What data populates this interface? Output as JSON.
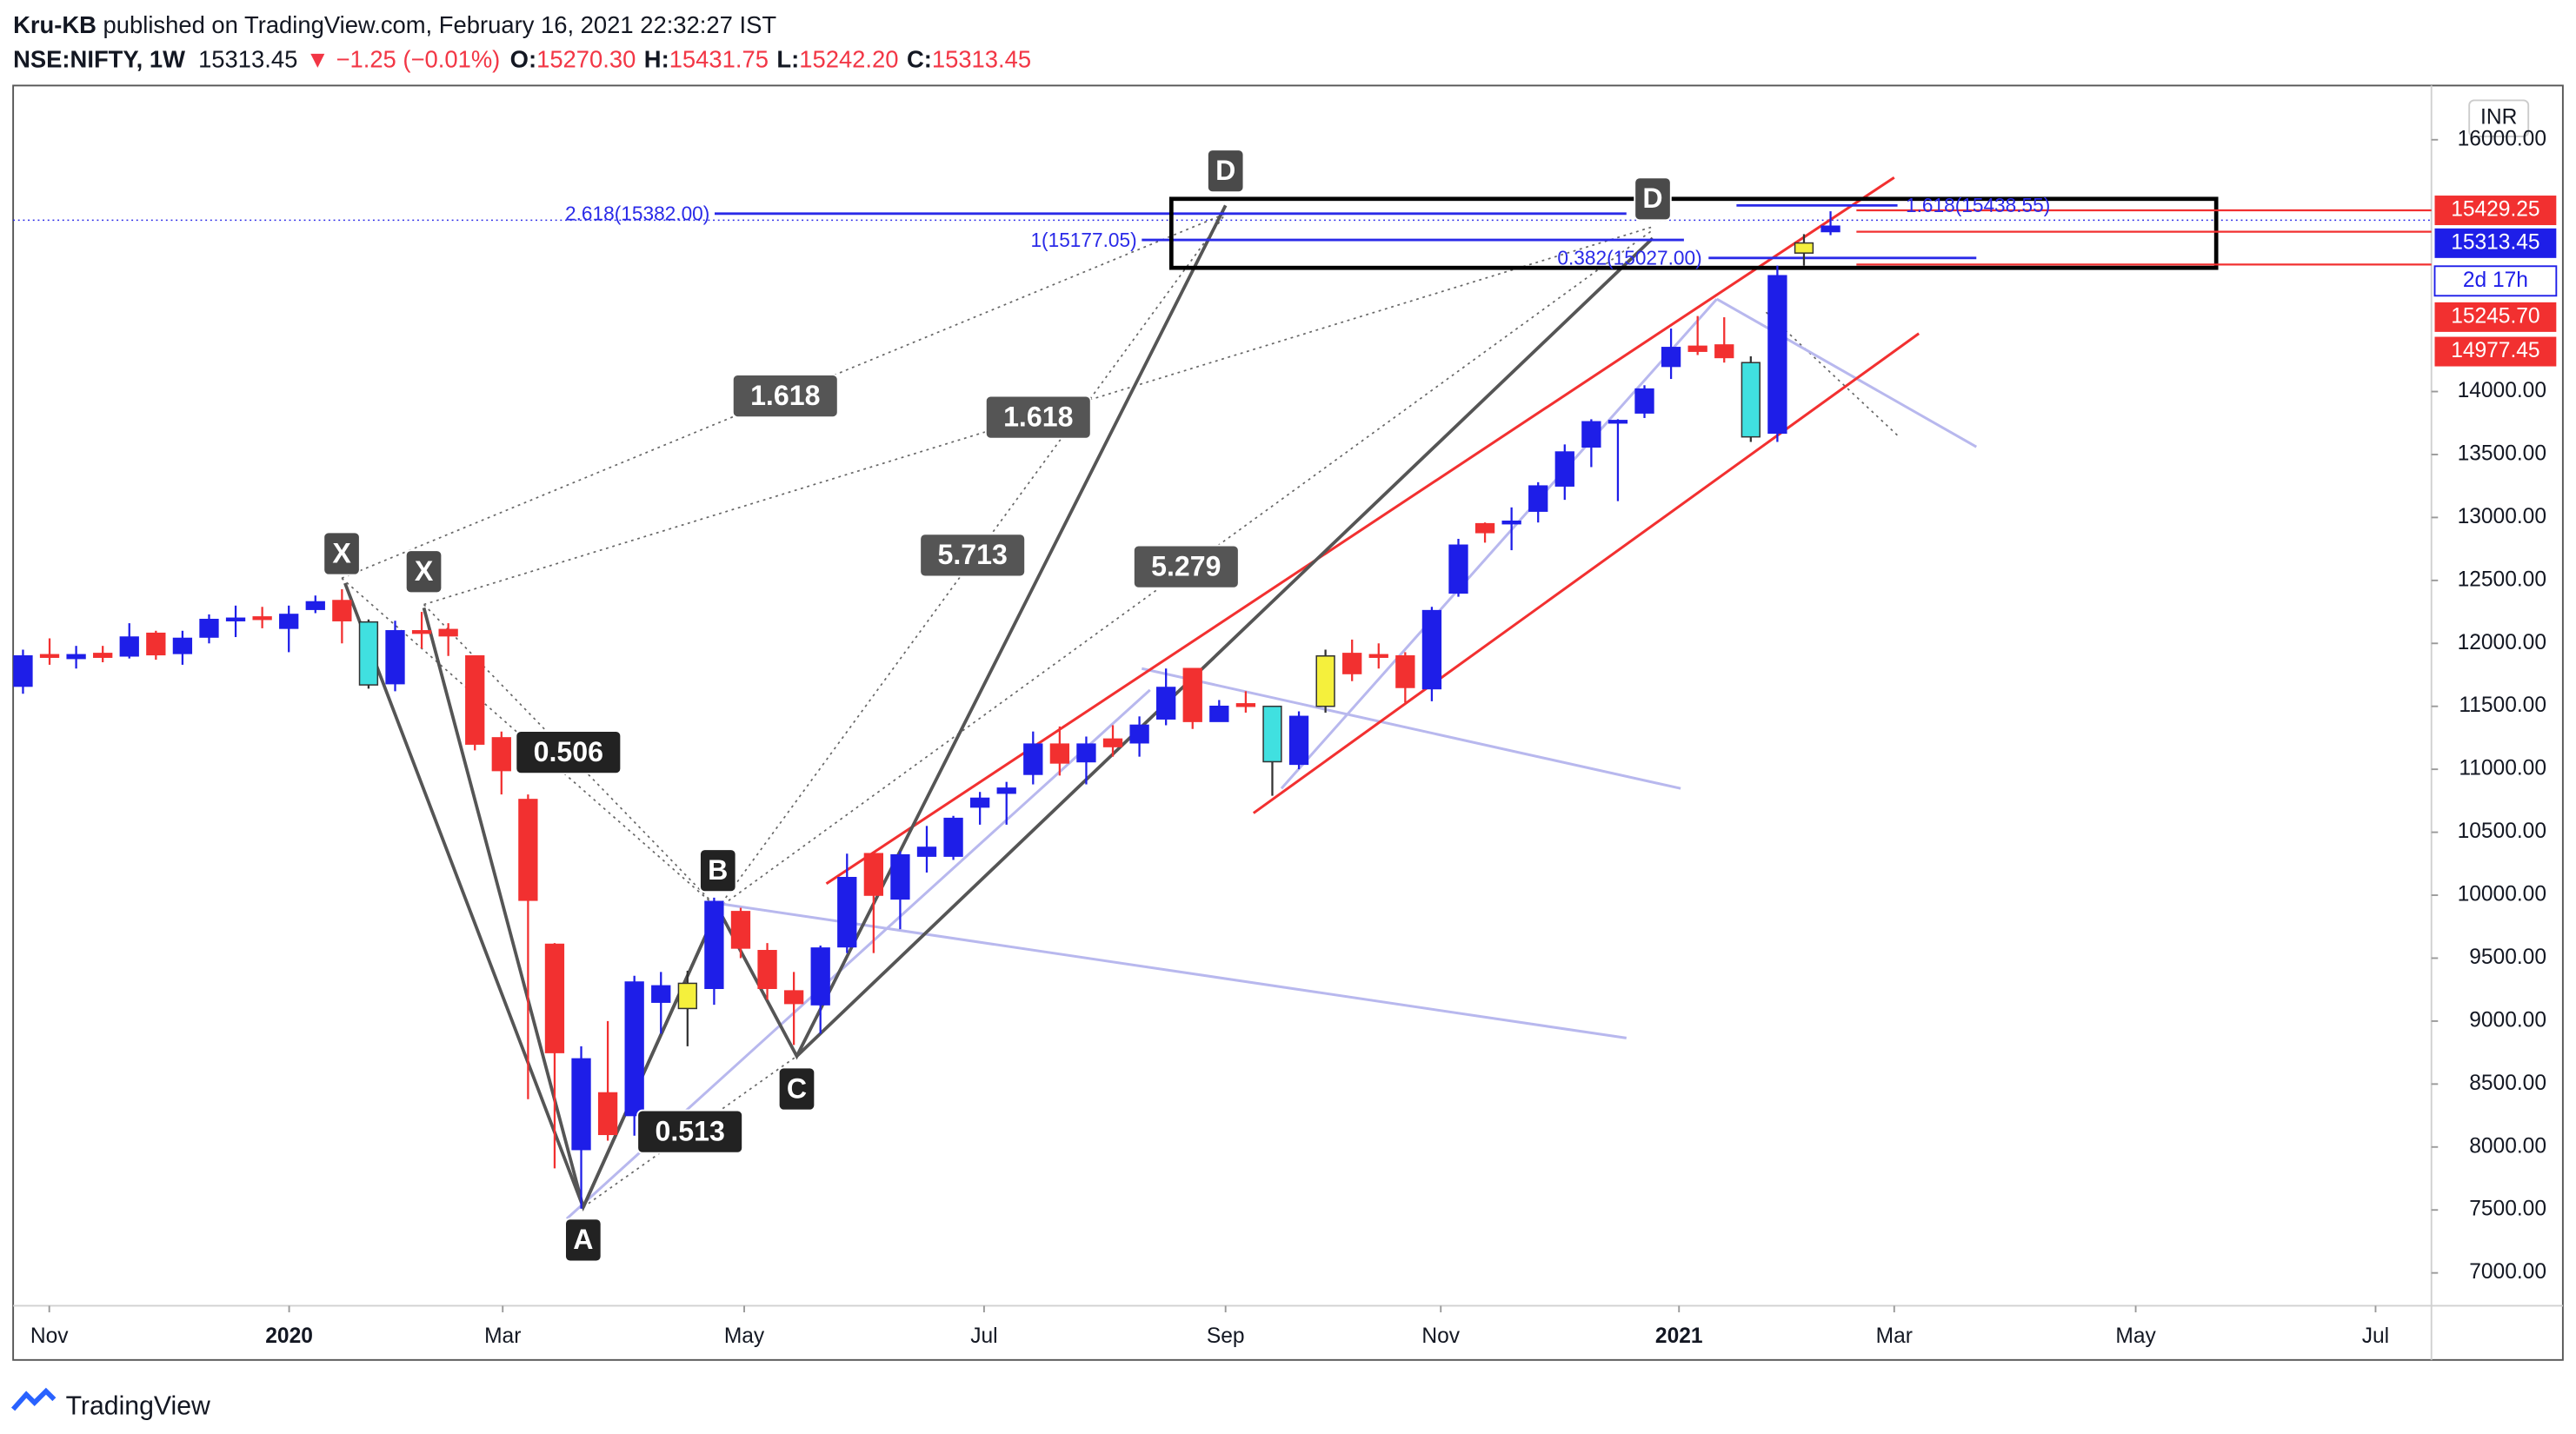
{
  "header": {
    "author": "Kru-KB",
    "published": "published on TradingView.com, February 16, 2021 22:32:27 IST",
    "symbol": "NSE:NIFTY, 1W",
    "last": "15313.45",
    "change": "▼ −1.25 (−0.01%)",
    "o_label": "O:",
    "o": "15270.30",
    "h_label": "H:",
    "h": "15431.75",
    "l_label": "L:",
    "l": "15242.20",
    "c_label": "C:",
    "c": "15313.45"
  },
  "currency": "INR",
  "footer": "TradingView",
  "chart_data": {
    "type": "candlestick",
    "xticks": [
      "Nov",
      "2020",
      "Mar",
      "May",
      "Jul",
      "Sep",
      "Nov",
      "2021",
      "Mar",
      "May",
      "Jul"
    ],
    "ylim": [
      6800,
      16100
    ],
    "yticks": [
      {
        "value": 7000,
        "label": "7000.00"
      },
      {
        "value": 7500,
        "label": "7500.00"
      },
      {
        "value": 8000,
        "label": "8000.00"
      },
      {
        "value": 8500,
        "label": "8500.00"
      },
      {
        "value": 9000,
        "label": "9000.00"
      },
      {
        "value": 9500,
        "label": "9500.00"
      },
      {
        "value": 10000,
        "label": "10000.00"
      },
      {
        "value": 10500,
        "label": "10500.00"
      },
      {
        "value": 11000,
        "label": "11000.00"
      },
      {
        "value": 11500,
        "label": "11500.00"
      },
      {
        "value": 12000,
        "label": "12000.00"
      },
      {
        "value": 12500,
        "label": "12500.00"
      },
      {
        "value": 13000,
        "label": "13000.00"
      },
      {
        "value": 13500,
        "label": "13500.00"
      },
      {
        "value": 14000,
        "label": "14000.00"
      },
      {
        "value": 16000,
        "label": "16000.00"
      }
    ],
    "ohlc": [
      [
        11660,
        11950,
        11600,
        11900
      ],
      [
        11910,
        12040,
        11830,
        11890
      ],
      [
        11880,
        11980,
        11800,
        11910
      ],
      [
        11920,
        11980,
        11850,
        11890
      ],
      [
        11900,
        12160,
        11880,
        12050
      ],
      [
        12080,
        12100,
        11870,
        11910
      ],
      [
        11920,
        12100,
        11830,
        12040
      ],
      [
        12050,
        12230,
        12000,
        12190
      ],
      [
        12180,
        12300,
        12050,
        12200
      ],
      [
        12210,
        12290,
        12120,
        12200
      ],
      [
        12120,
        12300,
        11930,
        12230
      ],
      [
        12270,
        12380,
        12240,
        12330
      ],
      [
        12340,
        12430,
        12000,
        12180
      ],
      [
        12170,
        12190,
        11640,
        11670
      ],
      [
        11680,
        12180,
        11620,
        12100
      ],
      [
        12100,
        12250,
        11960,
        12090
      ],
      [
        12110,
        12160,
        11900,
        12060
      ],
      [
        11900,
        11900,
        11150,
        11200
      ],
      [
        11250,
        11300,
        10800,
        10990
      ],
      [
        10760,
        10800,
        8380,
        9960
      ],
      [
        9610,
        9620,
        7830,
        8750
      ],
      [
        7980,
        8800,
        7510,
        8700
      ],
      [
        8430,
        9000,
        8050,
        8100
      ],
      [
        8250,
        9360,
        8090,
        9310
      ],
      [
        9150,
        9390,
        8900,
        9280
      ],
      [
        9100,
        9400,
        8800,
        9300
      ],
      [
        9260,
        9980,
        9130,
        9950
      ],
      [
        9870,
        9900,
        9500,
        9580
      ],
      [
        9560,
        9620,
        9170,
        9260
      ],
      [
        9240,
        9390,
        8810,
        9140
      ],
      [
        9130,
        9600,
        8900,
        9580
      ],
      [
        9590,
        10330,
        9540,
        10140
      ],
      [
        10330,
        10330,
        9540,
        10000
      ],
      [
        9970,
        10350,
        9730,
        10320
      ],
      [
        10310,
        10550,
        10180,
        10380
      ],
      [
        10310,
        10630,
        10280,
        10610
      ],
      [
        10700,
        10820,
        10560,
        10770
      ],
      [
        10810,
        10900,
        10560,
        10850
      ],
      [
        10960,
        11300,
        10880,
        11200
      ],
      [
        11200,
        11340,
        10950,
        11050
      ],
      [
        11060,
        11260,
        10880,
        11200
      ],
      [
        11240,
        11350,
        11100,
        11180
      ],
      [
        11210,
        11420,
        11100,
        11350
      ],
      [
        11400,
        11800,
        11350,
        11650
      ],
      [
        11800,
        11800,
        11320,
        11380
      ],
      [
        11380,
        11550,
        11380,
        11500
      ],
      [
        11520,
        11620,
        11450,
        11500
      ],
      [
        11500,
        11500,
        10790,
        11060
      ],
      [
        11040,
        11460,
        11000,
        11420
      ],
      [
        11500,
        11950,
        11450,
        11900
      ],
      [
        11920,
        12030,
        11700,
        11760
      ],
      [
        11910,
        12000,
        11800,
        11890
      ],
      [
        11900,
        11930,
        11530,
        11650
      ],
      [
        11640,
        12290,
        11540,
        12260
      ],
      [
        12400,
        12830,
        12370,
        12780
      ],
      [
        12950,
        12960,
        12800,
        12880
      ],
      [
        12950,
        13080,
        12740,
        12970
      ],
      [
        13050,
        13280,
        12960,
        13250
      ],
      [
        13250,
        13580,
        13140,
        13520
      ],
      [
        13560,
        13780,
        13400,
        13760
      ],
      [
        13760,
        13780,
        13130,
        13770
      ],
      [
        13830,
        14050,
        13790,
        14020
      ],
      [
        14200,
        14500,
        14100,
        14350
      ],
      [
        14360,
        14600,
        14290,
        14320
      ],
      [
        14370,
        14590,
        14230,
        14270
      ],
      [
        14230,
        14280,
        13600,
        13640
      ],
      [
        13670,
        15000,
        13600,
        14920
      ],
      [
        15100,
        15250,
        15000,
        15180
      ],
      [
        15270.3,
        15431.75,
        15242.2,
        15313.45
      ]
    ],
    "colors": [
      "#1e1ee8",
      "#f23030",
      "#1e1ee8",
      "#f23030",
      "#1e1ee8",
      "#f23030",
      "#1e1ee8",
      "#1e1ee8",
      "#1e1ee8",
      "#f23030",
      "#1e1ee8",
      "#1e1ee8",
      "#f23030",
      "#40e0e0",
      "#1e1ee8",
      "#f23030",
      "#f23030",
      "#f23030",
      "#f23030",
      "#f23030",
      "#f23030",
      "#1e1ee8",
      "#f23030",
      "#1e1ee8",
      "#1e1ee8",
      "#f5f03c",
      "#1e1ee8",
      "#f23030",
      "#f23030",
      "#f23030",
      "#1e1ee8",
      "#1e1ee8",
      "#f23030",
      "#1e1ee8",
      "#1e1ee8",
      "#1e1ee8",
      "#1e1ee8",
      "#1e1ee8",
      "#1e1ee8",
      "#f23030",
      "#1e1ee8",
      "#f23030",
      "#1e1ee8",
      "#1e1ee8",
      "#f23030",
      "#1e1ee8",
      "#f23030",
      "#40e0e0",
      "#1e1ee8",
      "#f5f03c",
      "#f23030",
      "#f23030",
      "#f23030",
      "#1e1ee8",
      "#1e1ee8",
      "#f23030",
      "#1e1ee8",
      "#1e1ee8",
      "#1e1ee8",
      "#1e1ee8",
      "#1e1ee8",
      "#1e1ee8",
      "#1e1ee8",
      "#f23030",
      "#f23030",
      "#40e0e0",
      "#1e1ee8",
      "#f5f03c",
      "#1e1ee8"
    ],
    "price_labels": [
      {
        "value": 15429.25,
        "color": "#f23030"
      },
      {
        "value": 15313.45,
        "color": "#1e1ee8"
      },
      {
        "value": 15245.7,
        "label": "15245.70",
        "color": "#f23030"
      },
      {
        "value": 14977.45,
        "color": "#f23030"
      }
    ],
    "countdown": "2d 17h",
    "pattern_labels": [
      "X",
      "X",
      "A",
      "B",
      "C",
      "D",
      "D",
      "1.618",
      "1.618",
      "5.713",
      "5.279",
      "0.506",
      "0.513"
    ],
    "fib_labels": [
      "2.618(15382.00)",
      "1(15177.05)",
      "0.382(15027.00)",
      "1.618(15438.55)"
    ]
  }
}
